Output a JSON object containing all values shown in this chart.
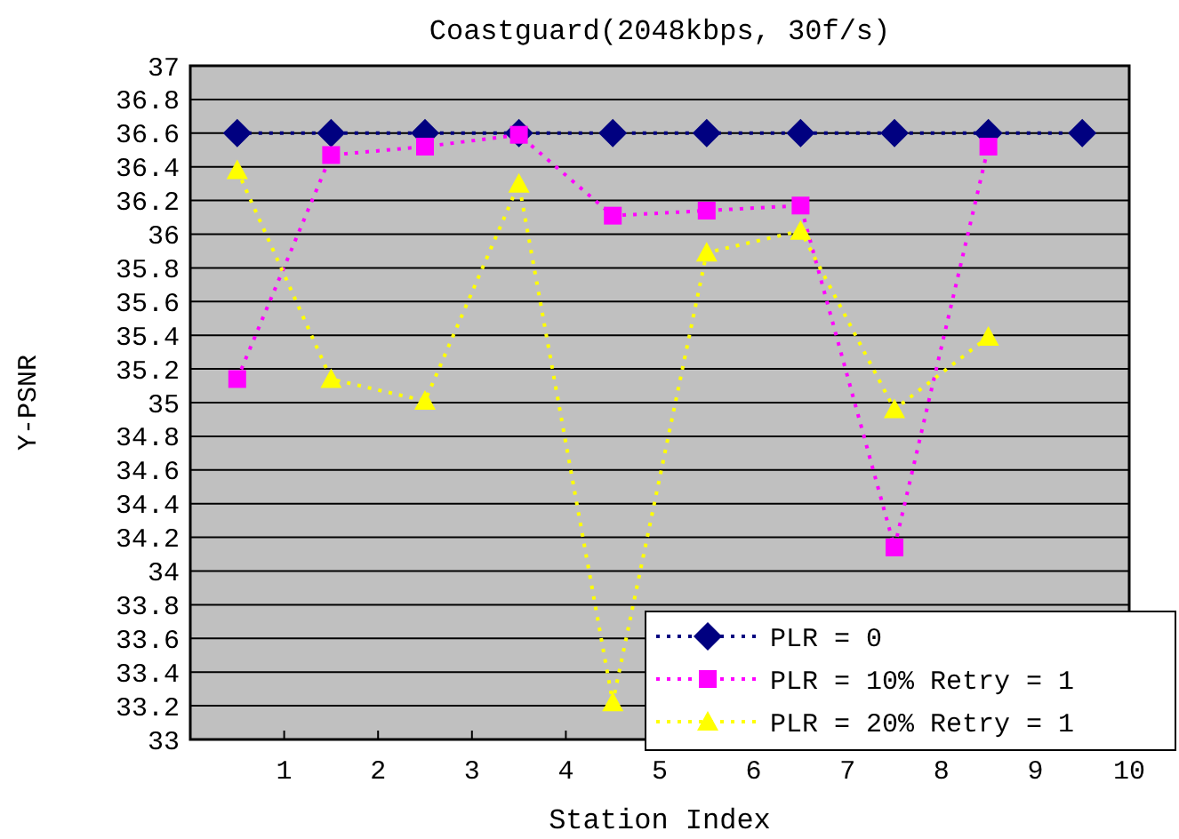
{
  "chart_data": {
    "type": "line",
    "title": "Coastguard(2048kbps, 30f/s)",
    "xlabel": "Station Index",
    "ylabel": "Y-PSNR",
    "xlim": [
      0,
      10
    ],
    "xticks": [
      1,
      2,
      3,
      4,
      5,
      6,
      7,
      8,
      9,
      10
    ],
    "ylim": [
      33,
      37
    ],
    "yticks": [
      33,
      33.2,
      33.4,
      33.6,
      33.8,
      34,
      34.2,
      34.4,
      34.6,
      34.8,
      35,
      35.2,
      35.4,
      35.6,
      35.8,
      36,
      36.2,
      36.4,
      36.6,
      36.8,
      37
    ],
    "grid": "y",
    "legend": "bottom right",
    "line_style": "dotted",
    "series": [
      {
        "name": "PLR = 0",
        "color": "#000080",
        "marker": "diamond",
        "x": [
          0.5,
          1.5,
          2.5,
          3.5,
          4.5,
          5.5,
          6.5,
          7.5,
          8.5,
          9.5
        ],
        "values": [
          36.6,
          36.6,
          36.6,
          36.6,
          36.6,
          36.6,
          36.6,
          36.6,
          36.6,
          36.6
        ]
      },
      {
        "name": "PLR = 10% Retry = 1",
        "color": "#ff00ff",
        "marker": "square",
        "x": [
          0.5,
          1.5,
          2.5,
          3.5,
          4.5,
          5.5,
          6.5,
          7.5,
          8.5
        ],
        "values": [
          35.14,
          36.47,
          36.52,
          36.59,
          36.11,
          36.14,
          36.17,
          34.14,
          36.52
        ]
      },
      {
        "name": "PLR = 20% Retry = 1",
        "color": "#ffff00",
        "marker": "triangle",
        "x": [
          0.5,
          1.5,
          2.5,
          3.5,
          4.5,
          5.5,
          6.5,
          7.5,
          8.5
        ],
        "values": [
          36.38,
          35.14,
          35.01,
          36.3,
          33.22,
          35.89,
          36.02,
          34.96,
          35.39
        ]
      }
    ]
  }
}
